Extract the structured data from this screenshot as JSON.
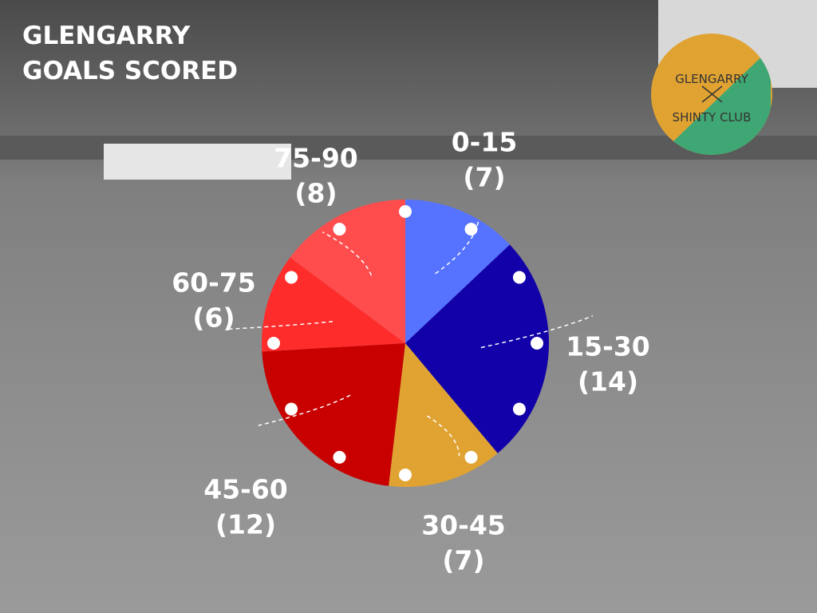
{
  "chart_data": {
    "type": "pie",
    "title": "GLENGARRY GOALS SCORED",
    "categories": [
      "0-15",
      "15-30",
      "30-45",
      "45-60",
      "60-75",
      "75-90"
    ],
    "values": [
      7,
      14,
      7,
      12,
      6,
      8
    ],
    "value_labels": [
      "(7)",
      "(14)",
      "(7)",
      "(12)",
      "(6)",
      "(8)"
    ],
    "colors": [
      "#5573ff",
      "#1200a8",
      "#e0a332",
      "#c80000",
      "#ff2c2c",
      "#ff4d4d"
    ]
  },
  "logo": {
    "line1": "GLENGARRY",
    "line2": "SHINTY CLUB"
  }
}
